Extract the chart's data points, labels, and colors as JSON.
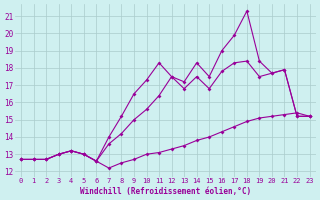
{
  "xlabel": "Windchill (Refroidissement éolien,°C)",
  "bg_color": "#cff0f0",
  "grid_color": "#aacccc",
  "line_color": "#990099",
  "xlim": [
    -0.5,
    23.5
  ],
  "ylim": [
    11.7,
    21.7
  ],
  "yticks": [
    12,
    13,
    14,
    15,
    16,
    17,
    18,
    19,
    20,
    21
  ],
  "xticks": [
    0,
    1,
    2,
    3,
    4,
    5,
    6,
    7,
    8,
    9,
    10,
    11,
    12,
    13,
    14,
    15,
    16,
    17,
    18,
    19,
    20,
    21,
    22,
    23
  ],
  "series1_x": [
    0,
    1,
    2,
    3,
    4,
    5,
    6,
    7,
    8,
    9,
    10,
    11,
    12,
    13,
    14,
    15,
    16,
    17,
    18,
    19,
    20,
    21,
    22,
    23
  ],
  "series1_y": [
    12.7,
    12.7,
    12.7,
    13.0,
    13.2,
    13.0,
    12.6,
    12.2,
    12.5,
    12.7,
    13.0,
    13.1,
    13.3,
    13.5,
    13.8,
    14.0,
    14.3,
    14.6,
    14.9,
    15.1,
    15.2,
    15.3,
    15.4,
    15.2
  ],
  "series2_x": [
    0,
    1,
    2,
    3,
    4,
    5,
    6,
    7,
    8,
    9,
    10,
    11,
    12,
    13,
    14,
    15,
    16,
    17,
    18,
    19,
    20,
    21,
    22,
    23
  ],
  "series2_y": [
    12.7,
    12.7,
    12.7,
    13.0,
    13.2,
    13.0,
    12.6,
    14.0,
    15.2,
    16.5,
    17.3,
    18.3,
    17.5,
    17.2,
    18.3,
    17.5,
    19.0,
    19.9,
    21.3,
    18.4,
    17.7,
    17.9,
    15.2,
    15.2
  ],
  "series3_x": [
    0,
    1,
    2,
    3,
    4,
    5,
    6,
    7,
    8,
    9,
    10,
    11,
    12,
    13,
    14,
    15,
    16,
    17,
    18,
    19,
    20,
    21,
    22,
    23
  ],
  "series3_y": [
    12.7,
    12.7,
    12.7,
    13.0,
    13.2,
    13.0,
    12.6,
    13.6,
    14.2,
    15.0,
    15.6,
    16.4,
    17.5,
    16.8,
    17.5,
    16.8,
    17.8,
    18.3,
    18.4,
    17.5,
    17.7,
    17.9,
    15.2,
    15.2
  ]
}
